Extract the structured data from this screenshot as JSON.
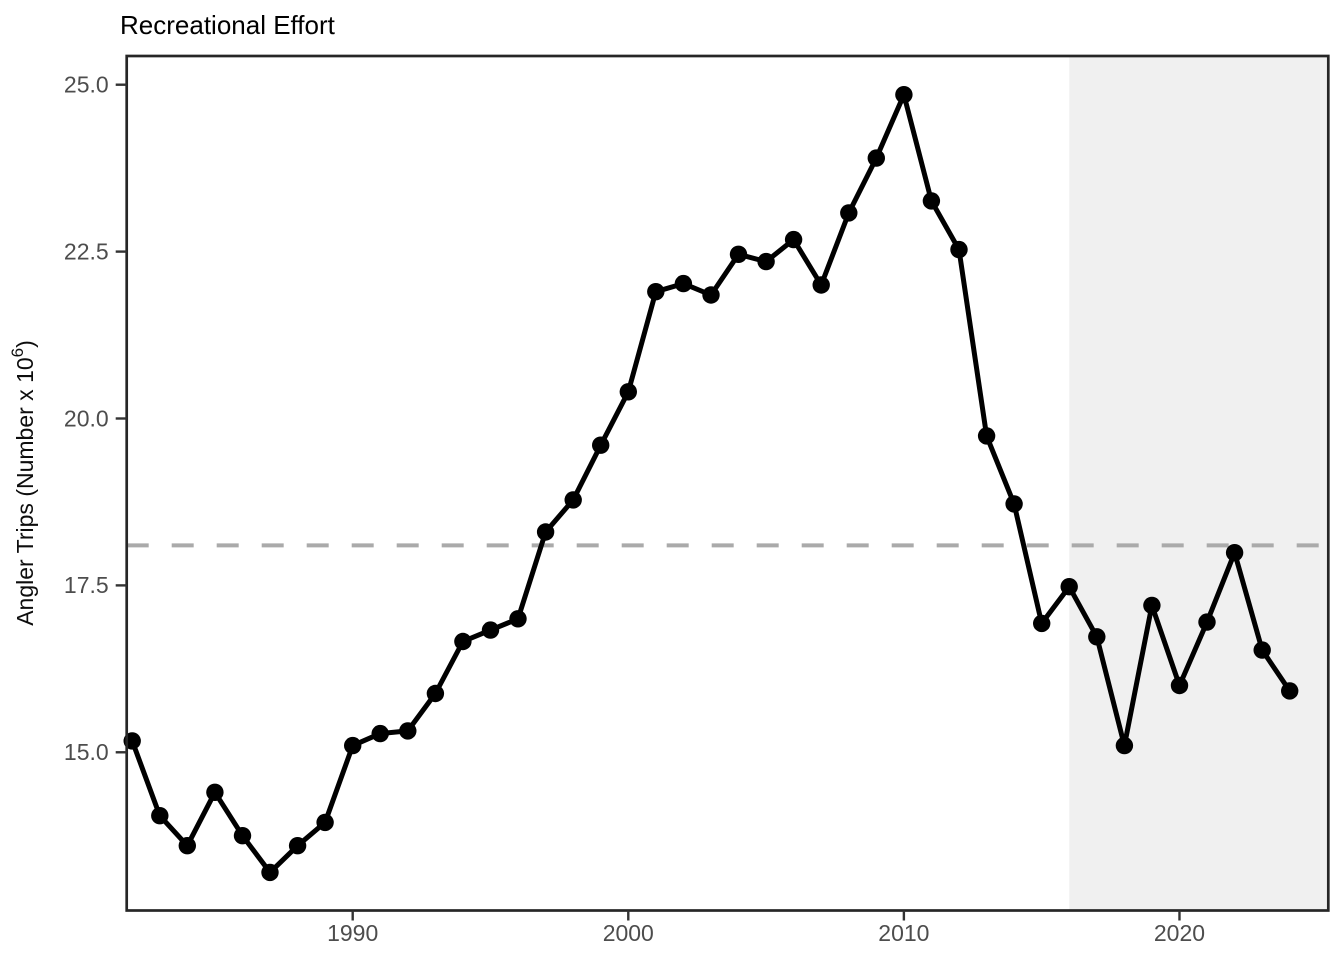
{
  "page": {
    "title": "Recreational Effort"
  },
  "chart_data": {
    "type": "line",
    "title": "Recreational Effort",
    "xlabel": "",
    "ylabel": "Angler Trips (Number x 10⁶)",
    "ylabel_parts": {
      "main": "Angler Trips (Number x 10",
      "sup": "6",
      "close": ")"
    },
    "legend": "none",
    "grid": false,
    "xlim": [
      1981.8,
      2025.4
    ],
    "ylim": [
      12.63,
      25.43
    ],
    "x_ticks": [
      {
        "value": 1990,
        "label": "1990"
      },
      {
        "value": 2000,
        "label": "2000"
      },
      {
        "value": 2010,
        "label": "2010"
      },
      {
        "value": 2020,
        "label": "2020"
      }
    ],
    "y_ticks": [
      {
        "value": 15.0,
        "label": "15.0"
      },
      {
        "value": 17.5,
        "label": "17.5"
      },
      {
        "value": 20.0,
        "label": "20.0"
      },
      {
        "value": 22.5,
        "label": "22.5"
      },
      {
        "value": 25.0,
        "label": "25.0"
      }
    ],
    "series": [
      {
        "name": "Angler Trips",
        "x": [
          1982,
          1983,
          1984,
          1985,
          1986,
          1987,
          1988,
          1989,
          1990,
          1991,
          1992,
          1993,
          1994,
          1995,
          1996,
          1997,
          1998,
          1999,
          2000,
          2001,
          2002,
          2003,
          2004,
          2005,
          2006,
          2007,
          2008,
          2009,
          2010,
          2011,
          2012,
          2013,
          2014,
          2015,
          2016,
          2017,
          2018,
          2019,
          2020,
          2021,
          2022,
          2023,
          2024
        ],
        "y": [
          15.17,
          14.05,
          13.6,
          14.4,
          13.75,
          13.2,
          13.6,
          13.95,
          15.1,
          15.28,
          15.32,
          15.88,
          16.66,
          16.83,
          17.0,
          18.3,
          18.78,
          19.6,
          20.4,
          21.9,
          22.02,
          21.85,
          22.46,
          22.35,
          22.68,
          22.0,
          23.08,
          23.9,
          24.85,
          23.26,
          22.53,
          19.74,
          18.72,
          16.93,
          17.48,
          16.73,
          15.1,
          17.2,
          16.0,
          16.95,
          17.99,
          16.53,
          15.92
        ]
      }
    ],
    "reference_line": {
      "value": 18.1,
      "style": "dashed"
    },
    "shaded_region": {
      "x_start": 2016,
      "x_end": 2025.4
    },
    "colors": {
      "line": "#000000",
      "point": "#000000",
      "reference": "#aaaaaa",
      "shade": "#f0f0f0",
      "axis_text": "#4d4d4d",
      "border": "#262626",
      "tick": "#333333"
    }
  }
}
